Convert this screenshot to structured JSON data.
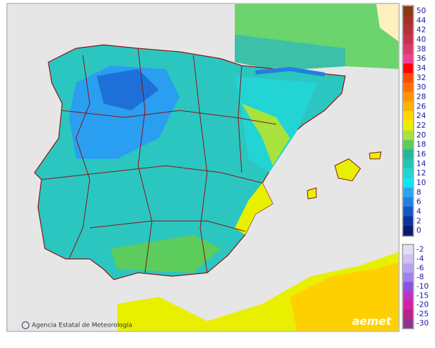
{
  "legend": [
    {
      "value": 50,
      "color": "#8a3a10"
    },
    {
      "value": 44,
      "color": "#a23228"
    },
    {
      "value": 42,
      "color": "#b63038"
    },
    {
      "value": 40,
      "color": "#c8324e"
    },
    {
      "value": 38,
      "color": "#d83a6c"
    },
    {
      "value": 36,
      "color": "#f0408e"
    },
    {
      "value": 34,
      "color": "#ff0000"
    },
    {
      "value": 32,
      "color": "#ff4a00"
    },
    {
      "value": 30,
      "color": "#ff7000"
    },
    {
      "value": 28,
      "color": "#ff9400"
    },
    {
      "value": 26,
      "color": "#ffb400"
    },
    {
      "value": 24,
      "color": "#ffd800"
    },
    {
      "value": 22,
      "color": "#e8f000"
    },
    {
      "value": 20,
      "color": "#a8e23c"
    },
    {
      "value": 18,
      "color": "#5ccc5c"
    },
    {
      "value": 16,
      "color": "#26b49a"
    },
    {
      "value": 14,
      "color": "#22c4b4"
    },
    {
      "value": 12,
      "color": "#22d4d4"
    },
    {
      "value": 10,
      "color": "#10e4f4"
    },
    {
      "value": 8,
      "color": "#2aa6f0"
    },
    {
      "value": 6,
      "color": "#2080e0"
    },
    {
      "value": 4,
      "color": "#1456c4"
    },
    {
      "value": 2,
      "color": "#10329c"
    },
    {
      "value": 0,
      "color": "#0a1a6c"
    }
  ],
  "legend_negative": [
    {
      "value": -2,
      "color": "#e4dcf4"
    },
    {
      "value": -4,
      "color": "#d0c2f2"
    },
    {
      "value": -6,
      "color": "#b8a2f0"
    },
    {
      "value": -8,
      "color": "#9e80ee"
    },
    {
      "value": -10,
      "color": "#8a52e2"
    },
    {
      "value": -15,
      "color": "#c030c4"
    },
    {
      "value": -20,
      "color": "#d420a4"
    },
    {
      "value": -25,
      "color": "#b42486"
    },
    {
      "value": -30,
      "color": "#8c3490"
    }
  ],
  "footer": {
    "credit": "Agencia Estatal de Meteorología",
    "logo": "aemet"
  }
}
